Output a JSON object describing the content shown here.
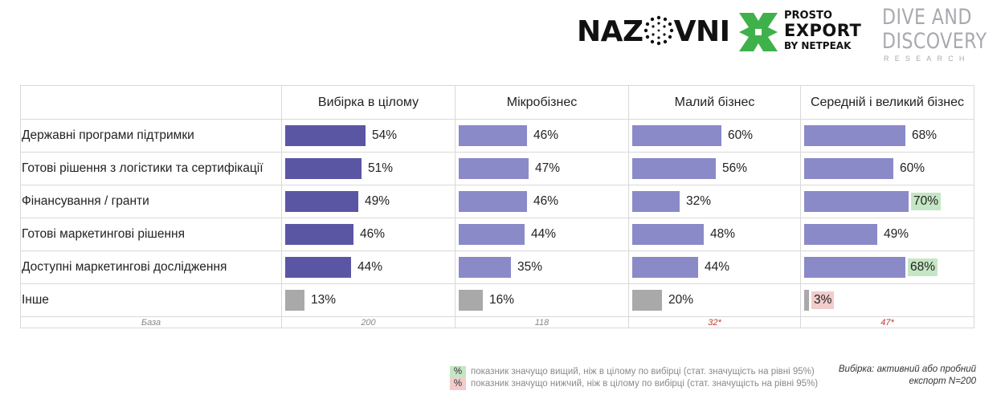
{
  "logos": {
    "nazovni": "NAZOVNI",
    "prosto_line1": "PROSTO",
    "prosto_line2": "EXPORT",
    "prosto_line3": "BY NETPEAK",
    "dive_line1": "DIVE AND",
    "dive_line2": "DISCOVERY",
    "dive_line3": "RESEARCH"
  },
  "colors": {
    "total_bar": "#5b56a4",
    "segment_bar": "#8b8ac8",
    "other_bar": "#a9a9a9",
    "significantly_higher": "#c5e6c4",
    "significantly_lower": "#f1cccb",
    "flag_text": "#c0392b"
  },
  "chart_data": {
    "type": "bar",
    "orientation": "horizontal",
    "layout": "table",
    "unit": "%",
    "columns": [
      "Вибірка в цілому",
      "Мікробізнес",
      "Малий бізнес",
      "Середній і великий бізнес"
    ],
    "categories": [
      "Державні програми підтримки",
      "Готові рішення з логістики та сертифікації",
      "Фінансування / гранти",
      "Готові маркетингові рішення",
      "Доступні маркетингові дослідження",
      "Інше"
    ],
    "series": [
      {
        "name": "Вибірка в цілому",
        "values": [
          54,
          51,
          49,
          46,
          44,
          13
        ]
      },
      {
        "name": "Мікробізнес",
        "values": [
          46,
          47,
          46,
          44,
          35,
          16
        ]
      },
      {
        "name": "Малий бізнес",
        "values": [
          60,
          56,
          32,
          48,
          44,
          20
        ]
      },
      {
        "name": "Середній і великий бізнес",
        "values": [
          68,
          60,
          70,
          49,
          68,
          3
        ]
      }
    ],
    "significance": [
      {
        "series": 3,
        "category": 2,
        "flag": "high"
      },
      {
        "series": 3,
        "category": 4,
        "flag": "high"
      },
      {
        "series": 3,
        "category": 5,
        "flag": "low"
      }
    ],
    "base_label": "База",
    "base": [
      "200",
      "118",
      "32*",
      "47*"
    ]
  },
  "legend": {
    "symbol": "%",
    "high_text": "показник значущо вищий, ніж в цілому по вибірці (стат. значущість на рівні 95%)",
    "low_text": "показник значущо нижчий, ніж в цілому по вибірці (стат. значущість на рівні 95%)"
  },
  "sample_note": "Вибірка: активний або пробний експорт N=200"
}
